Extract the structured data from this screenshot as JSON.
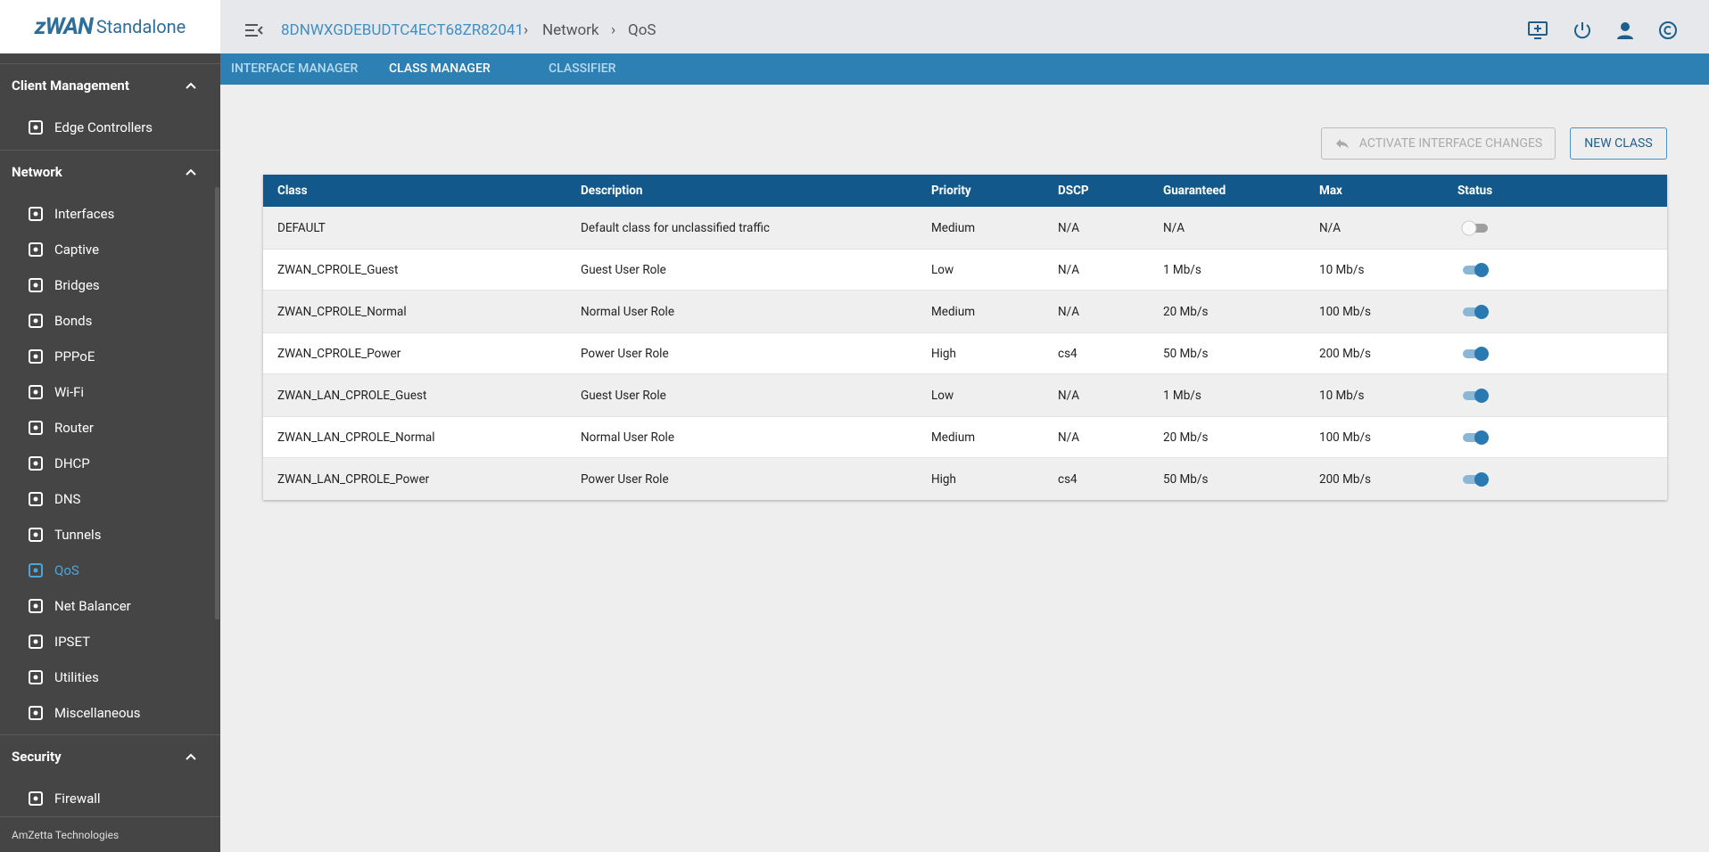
{
  "brand": {
    "name": "zWAN",
    "product": "Standalone"
  },
  "sidebar": {
    "sections": [
      {
        "title": "Client Management",
        "items": [
          "Edge Controllers"
        ]
      },
      {
        "title": "Network",
        "items": [
          "Interfaces",
          "Captive",
          "Bridges",
          "Bonds",
          "PPPoE",
          "Wi-Fi",
          "Router",
          "DHCP",
          "DNS",
          "Tunnels",
          "QoS",
          "Net Balancer",
          "IPSET",
          "Utilities",
          "Miscellaneous"
        ]
      },
      {
        "title": "Security",
        "items": [
          "Firewall"
        ]
      }
    ],
    "active": "QoS",
    "footer": "AmZetta Technologies"
  },
  "header": {
    "breadcrumb": [
      "8DNWXGDEBUDTC4ECT68ZR82041",
      "Network",
      "QoS"
    ]
  },
  "tabs": {
    "items": [
      "INTERFACE MANAGER",
      "CLASS MANAGER",
      "CLASSIFIER"
    ],
    "active": "CLASS MANAGER"
  },
  "buttons": {
    "activate": "ACTIVATE INTERFACE CHANGES",
    "new_class": "NEW CLASS"
  },
  "table": {
    "columns": [
      "Class",
      "Description",
      "Priority",
      "DSCP",
      "Guaranteed",
      "Max",
      "Status"
    ],
    "rows": [
      {
        "class": "DEFAULT",
        "description": "Default class for unclassified traffic",
        "priority": "Medium",
        "dscp": "N/A",
        "guaranteed": "N/A",
        "max": "N/A",
        "enabled": false
      },
      {
        "class": "ZWAN_CPROLE_Guest",
        "description": "Guest User Role",
        "priority": "Low",
        "dscp": "N/A",
        "guaranteed": "1 Mb/s",
        "max": "10 Mb/s",
        "enabled": true
      },
      {
        "class": "ZWAN_CPROLE_Normal",
        "description": "Normal User Role",
        "priority": "Medium",
        "dscp": "N/A",
        "guaranteed": "20 Mb/s",
        "max": "100 Mb/s",
        "enabled": true
      },
      {
        "class": "ZWAN_CPROLE_Power",
        "description": "Power User Role",
        "priority": "High",
        "dscp": "cs4",
        "guaranteed": "50 Mb/s",
        "max": "200 Mb/s",
        "enabled": true
      },
      {
        "class": "ZWAN_LAN_CPROLE_Guest",
        "description": "Guest User Role",
        "priority": "Low",
        "dscp": "N/A",
        "guaranteed": "1 Mb/s",
        "max": "10 Mb/s",
        "enabled": true
      },
      {
        "class": "ZWAN_LAN_CPROLE_Normal",
        "description": "Normal User Role",
        "priority": "Medium",
        "dscp": "N/A",
        "guaranteed": "20 Mb/s",
        "max": "100 Mb/s",
        "enabled": true
      },
      {
        "class": "ZWAN_LAN_CPROLE_Power",
        "description": "Power User Role",
        "priority": "High",
        "dscp": "cs4",
        "guaranteed": "50 Mb/s",
        "max": "200 Mb/s",
        "enabled": true
      }
    ]
  }
}
